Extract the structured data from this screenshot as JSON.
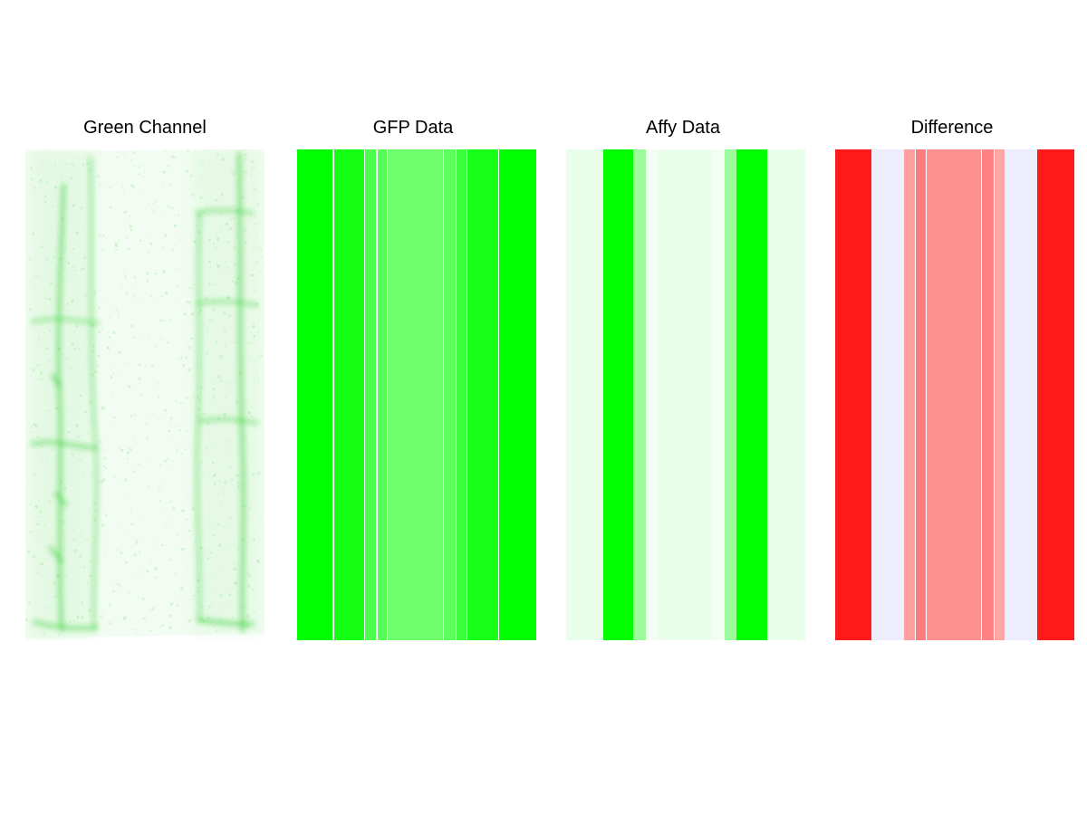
{
  "panels": [
    {
      "id": "green-channel",
      "title": "Green Channel",
      "kind": "image",
      "colors": {
        "base": "#f2fcf2",
        "stain": "#22cc22"
      }
    },
    {
      "id": "gfp-data",
      "title": "GFP Data",
      "kind": "stripes",
      "stripes": [
        {
          "w": 14.8,
          "color": "#00ff00"
        },
        {
          "w": 0.4,
          "color": "#ffffff"
        },
        {
          "w": 12.6,
          "color": "#14ff14"
        },
        {
          "w": 0.4,
          "color": "#ffffff"
        },
        {
          "w": 4.6,
          "color": "#4cff4c"
        },
        {
          "w": 0.4,
          "color": "#ffffff"
        },
        {
          "w": 3.8,
          "color": "#55ff55"
        },
        {
          "w": 0.4,
          "color": "#ffffff"
        },
        {
          "w": 22.9,
          "color": "#70ff6c"
        },
        {
          "w": 0.4,
          "color": "#ffffff"
        },
        {
          "w": 4.9,
          "color": "#5cff5c"
        },
        {
          "w": 0.4,
          "color": "#ffffff"
        },
        {
          "w": 4.2,
          "color": "#3cff3c"
        },
        {
          "w": 0.4,
          "color": "#ffffff"
        },
        {
          "w": 12.6,
          "color": "#18ff18"
        },
        {
          "w": 0.4,
          "color": "#ffffff"
        },
        {
          "w": 15.4,
          "color": "#00ff00"
        }
      ]
    },
    {
      "id": "affy-data",
      "title": "Affy Data",
      "kind": "stripes",
      "stripes": [
        {
          "w": 15.5,
          "color": "#e8fee8"
        },
        {
          "w": 12.7,
          "color": "#00ff00"
        },
        {
          "w": 5.3,
          "color": "#9cfc9c"
        },
        {
          "w": 5.0,
          "color": "#f4fff4"
        },
        {
          "w": 22.6,
          "color": "#e8fee8"
        },
        {
          "w": 5.0,
          "color": "#f4fff4"
        },
        {
          "w": 5.0,
          "color": "#9cfc9c"
        },
        {
          "w": 12.9,
          "color": "#00ff00"
        },
        {
          "w": 16.0,
          "color": "#e8fee8"
        }
      ]
    },
    {
      "id": "difference",
      "title": "Difference",
      "kind": "stripes",
      "stripes": [
        {
          "w": 15.0,
          "color": "#ff1a1a"
        },
        {
          "w": 13.6,
          "color": "#eeeeff"
        },
        {
          "w": 4.7,
          "color": "#ff9f9f"
        },
        {
          "w": 0.4,
          "color": "#ffffff"
        },
        {
          "w": 4.0,
          "color": "#ff7c7c"
        },
        {
          "w": 0.4,
          "color": "#ffffff"
        },
        {
          "w": 22.8,
          "color": "#ff9090"
        },
        {
          "w": 0.4,
          "color": "#ffffff"
        },
        {
          "w": 4.8,
          "color": "#ff8080"
        },
        {
          "w": 0.4,
          "color": "#ffffff"
        },
        {
          "w": 4.3,
          "color": "#ffa6a6"
        },
        {
          "w": 13.6,
          "color": "#eeeeff"
        },
        {
          "w": 15.6,
          "color": "#ff1a1a"
        }
      ]
    }
  ]
}
